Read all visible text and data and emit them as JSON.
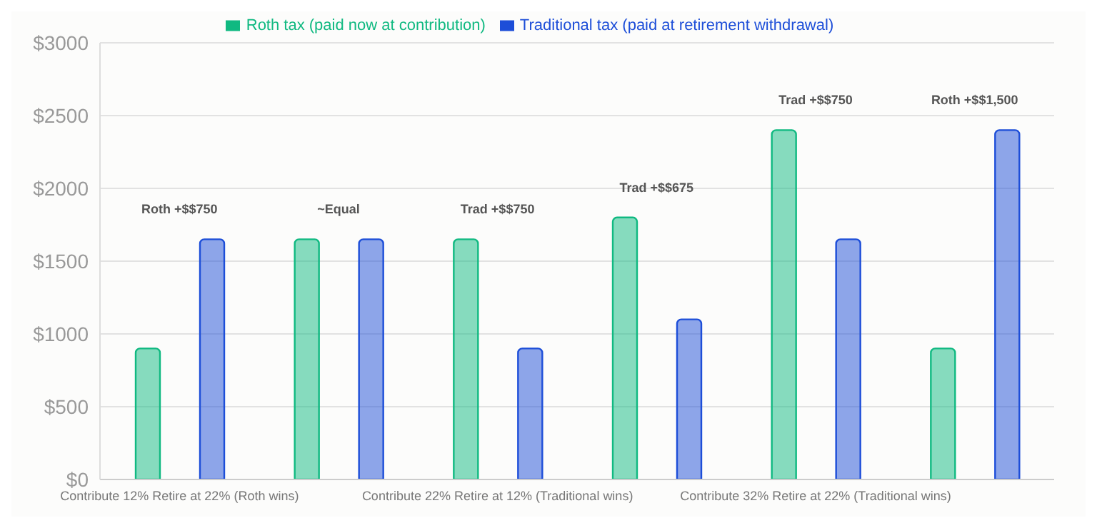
{
  "chart_data": {
    "type": "bar",
    "categories": [
      "Contribute 12% Retire at 22% (Roth wins)",
      null,
      "Contribute 22% Retire at 12% (Traditional wins)",
      null,
      "Contribute 32% Retire at 22% (Traditional wins)",
      null
    ],
    "series": [
      {
        "name": "Roth tax (paid now at contribution)",
        "color": "#10b981",
        "values": [
          900,
          1650,
          1650,
          1800,
          2400,
          900
        ]
      },
      {
        "name": "Traditional tax (paid at retirement withdrawal)",
        "color": "#1d4ed8",
        "values": [
          1650,
          1650,
          900,
          1100,
          1650,
          2400
        ]
      }
    ],
    "annotations": [
      "Roth +$$750",
      "~Equal",
      "Trad +$$750",
      "Trad +$$675",
      "Trad +$$750",
      "Roth +$$1,500"
    ],
    "ylim": [
      0,
      3000
    ],
    "yticks": [
      {
        "value": 0,
        "label": "$0"
      },
      {
        "value": 500,
        "label": "$500"
      },
      {
        "value": 1000,
        "label": "$1000"
      },
      {
        "value": 1500,
        "label": "$1500"
      },
      {
        "value": 2000,
        "label": "$2000"
      },
      {
        "value": 2500,
        "label": "$2500"
      },
      {
        "value": 3000,
        "label": "$3000"
      }
    ],
    "grid": "y",
    "legend": "top"
  }
}
